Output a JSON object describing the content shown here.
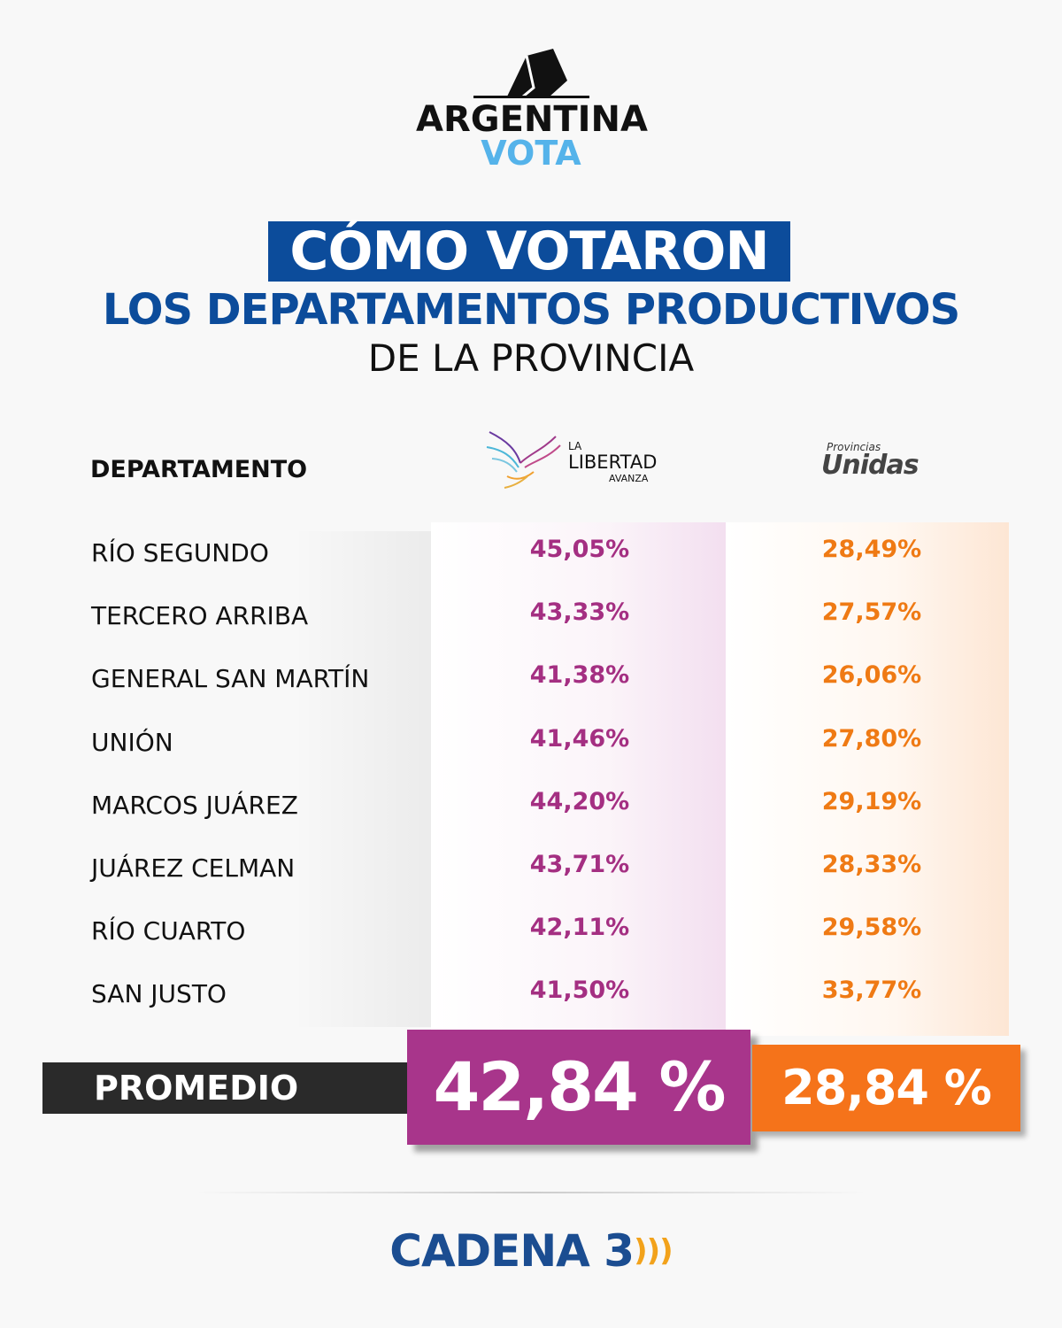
{
  "brand": {
    "line1": "ARGENTINA",
    "line2": "VOTA"
  },
  "title": {
    "highlight": "CÓMO VOTARON",
    "line2": "LOS DEPARTAMENTOS PRODUCTIVOS",
    "line3": "DE LA PROVINCIA"
  },
  "parties": [
    {
      "name": "LA LIBERTAD AVANZA",
      "logo_small": "LA",
      "logo_main": "LIBERTAD",
      "logo_sub": "AVANZA",
      "color": "#a42f82"
    },
    {
      "name": "Provincias Unidas",
      "logo_small": "Provincias",
      "logo_main": "Unidas",
      "color": "#ef7a14"
    }
  ],
  "chart_data": {
    "type": "table",
    "title": "CÓMO VOTARON LOS DEPARTAMENTOS PRODUCTIVOS DE LA PROVINCIA",
    "column_header": "DEPARTAMENTO",
    "series": [
      "La Libertad Avanza",
      "Provincias Unidas"
    ],
    "rows": [
      {
        "department": "RÍO SEGUNDO",
        "lla": "45,05%",
        "pu": "28,49%"
      },
      {
        "department": "TERCERO ARRIBA",
        "lla": "43,33%",
        "pu": "27,57%"
      },
      {
        "department": "GENERAL SAN MARTÍN",
        "lla": "41,38%",
        "pu": "26,06%"
      },
      {
        "department": "UNIÓN",
        "lla": "41,46%",
        "pu": "27,80%"
      },
      {
        "department": "MARCOS JUÁREZ",
        "lla": "44,20%",
        "pu": "29,19%"
      },
      {
        "department": "JUÁREZ CELMAN",
        "lla": "43,71%",
        "pu": "28,33%"
      },
      {
        "department": "RÍO CUARTO",
        "lla": "42,11%",
        "pu": "29,58%"
      },
      {
        "department": "SAN JUSTO",
        "lla": "41,50%",
        "pu": "33,77%"
      }
    ],
    "average": {
      "label": "PROMEDIO",
      "lla": "42,84 %",
      "pu": "28,84 %"
    }
  },
  "footer": {
    "brand": "CADENA 3",
    "waves": ")))"
  }
}
